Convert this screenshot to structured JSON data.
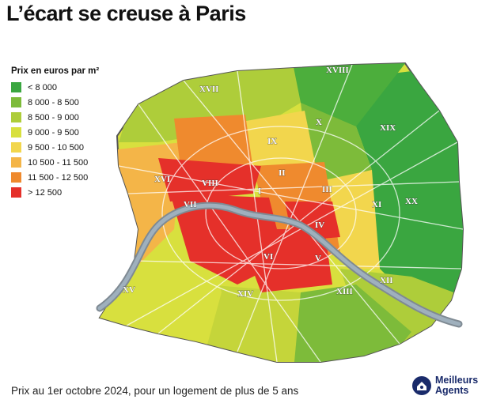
{
  "title": "L’écart se creuse à Paris",
  "legend": {
    "title": "Prix en euros par m²",
    "items": [
      {
        "label": "< 8 000",
        "color": "#3aa640"
      },
      {
        "label": "8 000 - 8 500",
        "color": "#7dbb3a"
      },
      {
        "label": "8 500 - 9 000",
        "color": "#aecd3a"
      },
      {
        "label": "9 000 - 9 500",
        "color": "#d8e03e"
      },
      {
        "label": "9 500 - 10 500",
        "color": "#f2d64d"
      },
      {
        "label": "10 500 - 11 500",
        "color": "#f4b548"
      },
      {
        "label": "11 500 - 12 500",
        "color": "#ef8a2e"
      },
      {
        "label": "> 12 500",
        "color": "#e5302a"
      }
    ]
  },
  "arrondissements": [
    {
      "label": "I",
      "tier": 8
    },
    {
      "label": "II",
      "tier": 7
    },
    {
      "label": "III",
      "tier": 7
    },
    {
      "label": "IV",
      "tier": 8
    },
    {
      "label": "V",
      "tier": 8
    },
    {
      "label": "VI",
      "tier": 8
    },
    {
      "label": "VII",
      "tier": 8
    },
    {
      "label": "VIII",
      "tier": 8
    },
    {
      "label": "IX",
      "tier": 6
    },
    {
      "label": "X",
      "tier": 4
    },
    {
      "label": "XI",
      "tier": 5
    },
    {
      "label": "XII",
      "tier": 4
    },
    {
      "label": "XIII",
      "tier": 2
    },
    {
      "label": "XIV",
      "tier": 5
    },
    {
      "label": "XV",
      "tier": 4
    },
    {
      "label": "XVI",
      "tier": 6
    },
    {
      "label": "XVII",
      "tier": 5
    },
    {
      "label": "XVIII",
      "tier": 1
    },
    {
      "label": "XIX",
      "tier": 1
    },
    {
      "label": "XX",
      "tier": 1
    }
  ],
  "footer": "Prix au 1er octobre 2024, pour un logement de plus de 5 ans",
  "logo": {
    "line1": "Meilleurs",
    "line2": "Agents",
    "color": "#1a2b6b"
  }
}
